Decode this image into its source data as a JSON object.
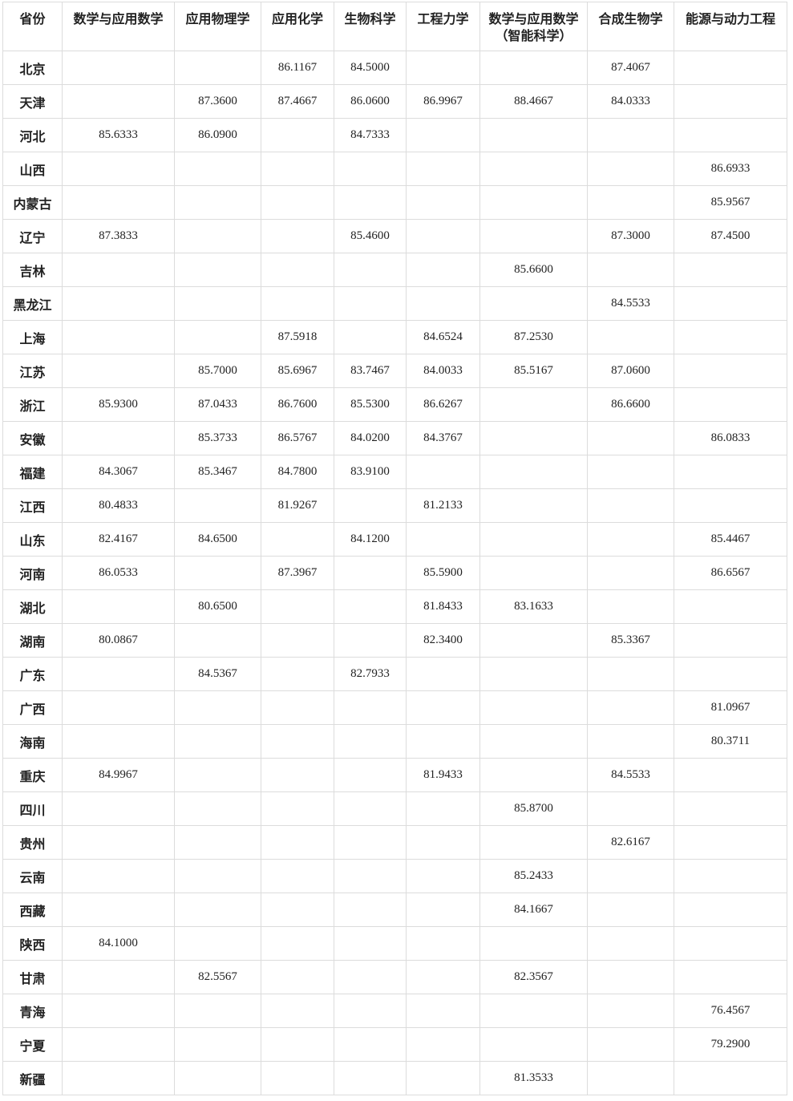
{
  "table": {
    "headers": [
      "省份",
      "数学与应用数学",
      "应用物理学",
      "应用化学",
      "生物科学",
      "工程力学",
      "数学与应用数学（智能科学）",
      "合成生物学",
      "能源与动力工程"
    ],
    "rows": [
      [
        "北京",
        "",
        "",
        "86.1167",
        "84.5000",
        "",
        "",
        "87.4067",
        ""
      ],
      [
        "天津",
        "",
        "87.3600",
        "87.4667",
        "86.0600",
        "86.9967",
        "88.4667",
        "84.0333",
        ""
      ],
      [
        "河北",
        "85.6333",
        "86.0900",
        "",
        "84.7333",
        "",
        "",
        "",
        ""
      ],
      [
        "山西",
        "",
        "",
        "",
        "",
        "",
        "",
        "",
        "86.6933"
      ],
      [
        "内蒙古",
        "",
        "",
        "",
        "",
        "",
        "",
        "",
        "85.9567"
      ],
      [
        "辽宁",
        "87.3833",
        "",
        "",
        "85.4600",
        "",
        "",
        "87.3000",
        "87.4500"
      ],
      [
        "吉林",
        "",
        "",
        "",
        "",
        "",
        "85.6600",
        "",
        ""
      ],
      [
        "黑龙江",
        "",
        "",
        "",
        "",
        "",
        "",
        "84.5533",
        ""
      ],
      [
        "上海",
        "",
        "",
        "87.5918",
        "",
        "84.6524",
        "87.2530",
        "",
        ""
      ],
      [
        "江苏",
        "",
        "85.7000",
        "85.6967",
        "83.7467",
        "84.0033",
        "85.5167",
        "87.0600",
        ""
      ],
      [
        "浙江",
        "85.9300",
        "87.0433",
        "86.7600",
        "85.5300",
        "86.6267",
        "",
        "86.6600",
        ""
      ],
      [
        "安徽",
        "",
        "85.3733",
        "86.5767",
        "84.0200",
        "84.3767",
        "",
        "",
        "86.0833"
      ],
      [
        "福建",
        "84.3067",
        "85.3467",
        "84.7800",
        "83.9100",
        "",
        "",
        "",
        ""
      ],
      [
        "江西",
        "80.4833",
        "",
        "81.9267",
        "",
        "81.2133",
        "",
        "",
        ""
      ],
      [
        "山东",
        "82.4167",
        "84.6500",
        "",
        "84.1200",
        "",
        "",
        "",
        "85.4467"
      ],
      [
        "河南",
        "86.0533",
        "",
        "87.3967",
        "",
        "85.5900",
        "",
        "",
        "86.6567"
      ],
      [
        "湖北",
        "",
        "80.6500",
        "",
        "",
        "81.8433",
        "83.1633",
        "",
        ""
      ],
      [
        "湖南",
        "80.0867",
        "",
        "",
        "",
        "82.3400",
        "",
        "85.3367",
        ""
      ],
      [
        "广东",
        "",
        "84.5367",
        "",
        "82.7933",
        "",
        "",
        "",
        ""
      ],
      [
        "广西",
        "",
        "",
        "",
        "",
        "",
        "",
        "",
        "81.0967"
      ],
      [
        "海南",
        "",
        "",
        "",
        "",
        "",
        "",
        "",
        "80.3711"
      ],
      [
        "重庆",
        "84.9967",
        "",
        "",
        "",
        "81.9433",
        "",
        "84.5533",
        ""
      ],
      [
        "四川",
        "",
        "",
        "",
        "",
        "",
        "85.8700",
        "",
        ""
      ],
      [
        "贵州",
        "",
        "",
        "",
        "",
        "",
        "",
        "82.6167",
        ""
      ],
      [
        "云南",
        "",
        "",
        "",
        "",
        "",
        "85.2433",
        "",
        ""
      ],
      [
        "西藏",
        "",
        "",
        "",
        "",
        "",
        "84.1667",
        "",
        ""
      ],
      [
        "陕西",
        "84.1000",
        "",
        "",
        "",
        "",
        "",
        "",
        ""
      ],
      [
        "甘肃",
        "",
        "82.5567",
        "",
        "",
        "",
        "82.3567",
        "",
        ""
      ],
      [
        "青海",
        "",
        "",
        "",
        "",
        "",
        "",
        "",
        "76.4567"
      ],
      [
        "宁夏",
        "",
        "",
        "",
        "",
        "",
        "",
        "",
        "79.2900"
      ],
      [
        "新疆",
        "",
        "",
        "",
        "",
        "",
        "81.3533",
        "",
        ""
      ]
    ]
  }
}
